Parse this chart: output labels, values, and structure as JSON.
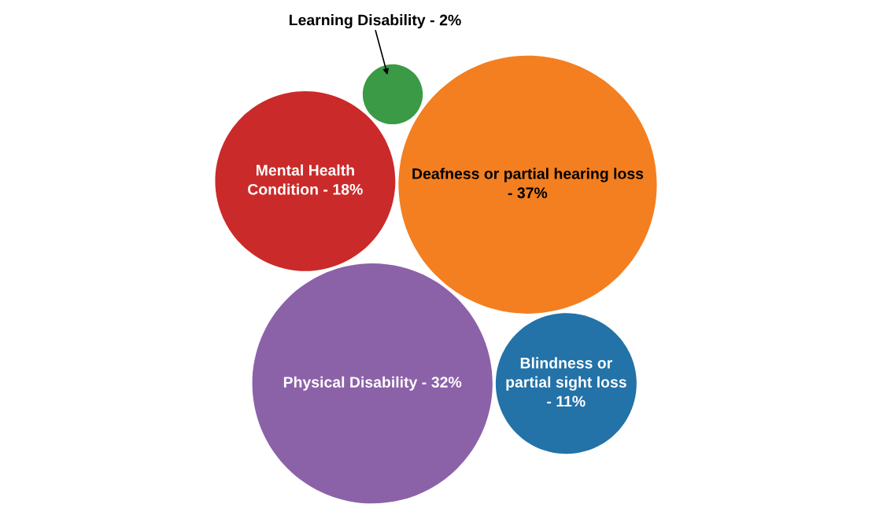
{
  "chart_data": {
    "type": "other",
    "categories": [
      "Physical Disability -",
      "Blindness or\npartial sight loss\n-",
      "Deafness or partial hearing loss\n-",
      "Mental Health\nCondition -",
      "Learning Disability -"
    ],
    "value_labels": [
      "32%",
      "11%",
      "37%",
      "18%",
      "2%"
    ],
    "values": [
      32,
      11,
      37,
      18,
      2
    ],
    "colors": [
      "#8b62a8",
      "#2372a8",
      "#f37f20",
      "#cb2a2a",
      "#3a9a45"
    ]
  }
}
